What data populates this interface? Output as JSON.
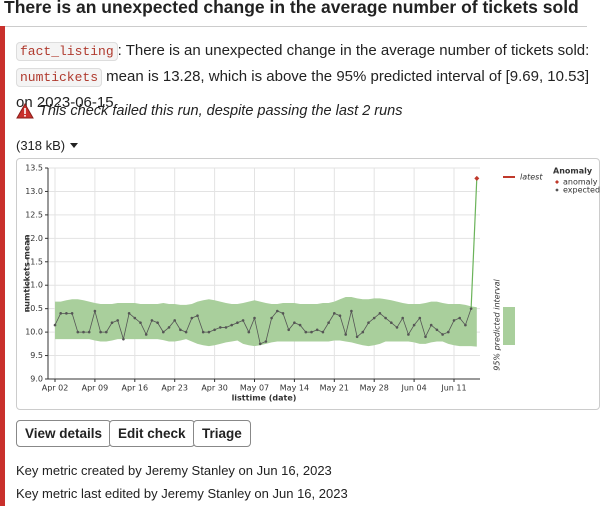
{
  "header": {
    "title": "There is an unexpected change in the average number of tickets sold"
  },
  "message": {
    "table_code": "fact_listing",
    "text1": ": There is an unexpected change in the average number of tickets sold:",
    "column_code": "numtickets",
    "text2": " mean is 13.28, which is above the 95% predicted interval of [9.69, 10.53] on 2023-06-15"
  },
  "warning": "This check failed this run, despite passing the last 2 runs",
  "size_label": "(318 kB)",
  "chart_data": {
    "type": "line",
    "x_label": "listtime (date)",
    "y_label": "numtickets mean",
    "x": [
      "Apr 02",
      "Apr 03",
      "Apr 04",
      "Apr 05",
      "Apr 06",
      "Apr 07",
      "Apr 08",
      "Apr 09",
      "Apr 10",
      "Apr 11",
      "Apr 12",
      "Apr 13",
      "Apr 14",
      "Apr 15",
      "Apr 16",
      "Apr 17",
      "Apr 18",
      "Apr 19",
      "Apr 20",
      "Apr 21",
      "Apr 22",
      "Apr 23",
      "Apr 24",
      "Apr 25",
      "Apr 26",
      "Apr 27",
      "Apr 28",
      "Apr 29",
      "Apr 30",
      "May 01",
      "May 02",
      "May 03",
      "May 04",
      "May 05",
      "May 06",
      "May 07",
      "May 08",
      "May 09",
      "May 10",
      "May 11",
      "May 12",
      "May 13",
      "May 14",
      "May 15",
      "May 16",
      "May 17",
      "May 18",
      "May 19",
      "May 20",
      "May 21",
      "May 22",
      "May 23",
      "May 24",
      "May 25",
      "May 26",
      "May 27",
      "May 28",
      "May 29",
      "May 30",
      "May 31",
      "Jun 01",
      "Jun 02",
      "Jun 03",
      "Jun 04",
      "Jun 05",
      "Jun 06",
      "Jun 07",
      "Jun 08",
      "Jun 09",
      "Jun 10",
      "Jun 11",
      "Jun 12",
      "Jun 13",
      "Jun 14",
      "Jun 15"
    ],
    "values": [
      10.15,
      10.4,
      10.4,
      10.4,
      10.0,
      10.0,
      10.0,
      10.45,
      10.0,
      10.0,
      10.2,
      10.25,
      9.85,
      10.4,
      10.3,
      10.2,
      9.95,
      10.25,
      10.2,
      10.0,
      10.1,
      10.25,
      10.05,
      10.0,
      10.3,
      10.35,
      10.0,
      10.0,
      10.05,
      10.1,
      10.1,
      10.15,
      10.2,
      10.25,
      10.0,
      10.3,
      9.75,
      9.8,
      10.3,
      10.45,
      10.4,
      10.05,
      10.2,
      10.15,
      10.0,
      10.0,
      10.05,
      10.0,
      10.2,
      10.4,
      10.35,
      9.95,
      10.45,
      9.9,
      10.0,
      10.2,
      10.3,
      10.4,
      10.3,
      10.2,
      10.1,
      10.3,
      9.95,
      10.15,
      10.3,
      9.9,
      10.15,
      10.05,
      9.95,
      10.0,
      10.25,
      10.3,
      10.15,
      10.5,
      13.28
    ],
    "interval": {
      "name": "95% predicted interval",
      "lower": [
        9.85,
        9.85,
        9.85,
        9.85,
        9.85,
        9.85,
        9.85,
        9.82,
        9.8,
        9.8,
        9.82,
        9.85,
        9.85,
        9.85,
        9.85,
        9.85,
        9.85,
        9.85,
        9.85,
        9.83,
        9.8,
        9.8,
        9.82,
        9.85,
        9.8,
        9.75,
        9.72,
        9.7,
        9.72,
        9.75,
        9.78,
        9.8,
        9.82,
        9.75,
        9.72,
        9.7,
        9.72,
        9.75,
        9.78,
        9.8,
        9.8,
        9.8,
        9.8,
        9.8,
        9.8,
        9.8,
        9.8,
        9.8,
        9.8,
        9.82,
        9.82,
        9.8,
        9.78,
        9.75,
        9.72,
        9.7,
        9.72,
        9.75,
        9.8,
        9.8,
        9.8,
        9.8,
        9.8,
        9.78,
        9.75,
        9.75,
        9.78,
        9.8,
        9.8,
        9.75,
        9.72,
        9.7,
        9.7,
        9.7,
        9.69
      ],
      "upper": [
        10.65,
        10.65,
        10.68,
        10.7,
        10.7,
        10.68,
        10.65,
        10.62,
        10.6,
        10.6,
        10.6,
        10.62,
        10.62,
        10.62,
        10.62,
        10.6,
        10.6,
        10.6,
        10.6,
        10.62,
        10.6,
        10.6,
        10.58,
        10.58,
        10.6,
        10.65,
        10.68,
        10.7,
        10.68,
        10.65,
        10.62,
        10.6,
        10.6,
        10.62,
        10.65,
        10.68,
        10.65,
        10.62,
        10.6,
        10.6,
        10.62,
        10.62,
        10.62,
        10.6,
        10.6,
        10.6,
        10.6,
        10.62,
        10.62,
        10.65,
        10.7,
        10.75,
        10.75,
        10.72,
        10.7,
        10.7,
        10.72,
        10.72,
        10.7,
        10.68,
        10.65,
        10.62,
        10.6,
        10.6,
        10.6,
        10.62,
        10.65,
        10.65,
        10.62,
        10.6,
        10.6,
        10.6,
        10.58,
        10.55,
        10.53
      ],
      "color": "#a9cf9c"
    },
    "line_color": "#555555",
    "latest": {
      "name": "latest",
      "color": "#c0392b"
    },
    "legend": {
      "title": "Anomaly",
      "items": [
        {
          "name": "anomaly",
          "color": "#c0392b"
        },
        {
          "name": "expected",
          "color": "#555555"
        }
      ]
    },
    "xticks": [
      "Apr 02",
      "Apr 09",
      "Apr 16",
      "Apr 23",
      "Apr 30",
      "May 07",
      "May 14",
      "May 21",
      "May 28",
      "Jun 04",
      "Jun 11"
    ],
    "ylim": [
      9,
      13.5
    ],
    "yticks": [
      {
        "value": 9,
        "label": "9.0"
      },
      9.5,
      {
        "value": 10,
        "label": "10.0"
      },
      10.5,
      {
        "value": 11,
        "label": "11.0"
      },
      11.5,
      {
        "value": 12,
        "label": "12.0"
      },
      12.5,
      {
        "value": 13,
        "label": "13.0"
      },
      13.5
    ],
    "grid": true
  },
  "buttons": [
    "View details",
    "Edit check",
    "Triage"
  ],
  "footer": [
    "Key metric created by Jeremy Stanley on Jun 16, 2023",
    "Key metric last edited by Jeremy Stanley on Jun 16, 2023"
  ]
}
